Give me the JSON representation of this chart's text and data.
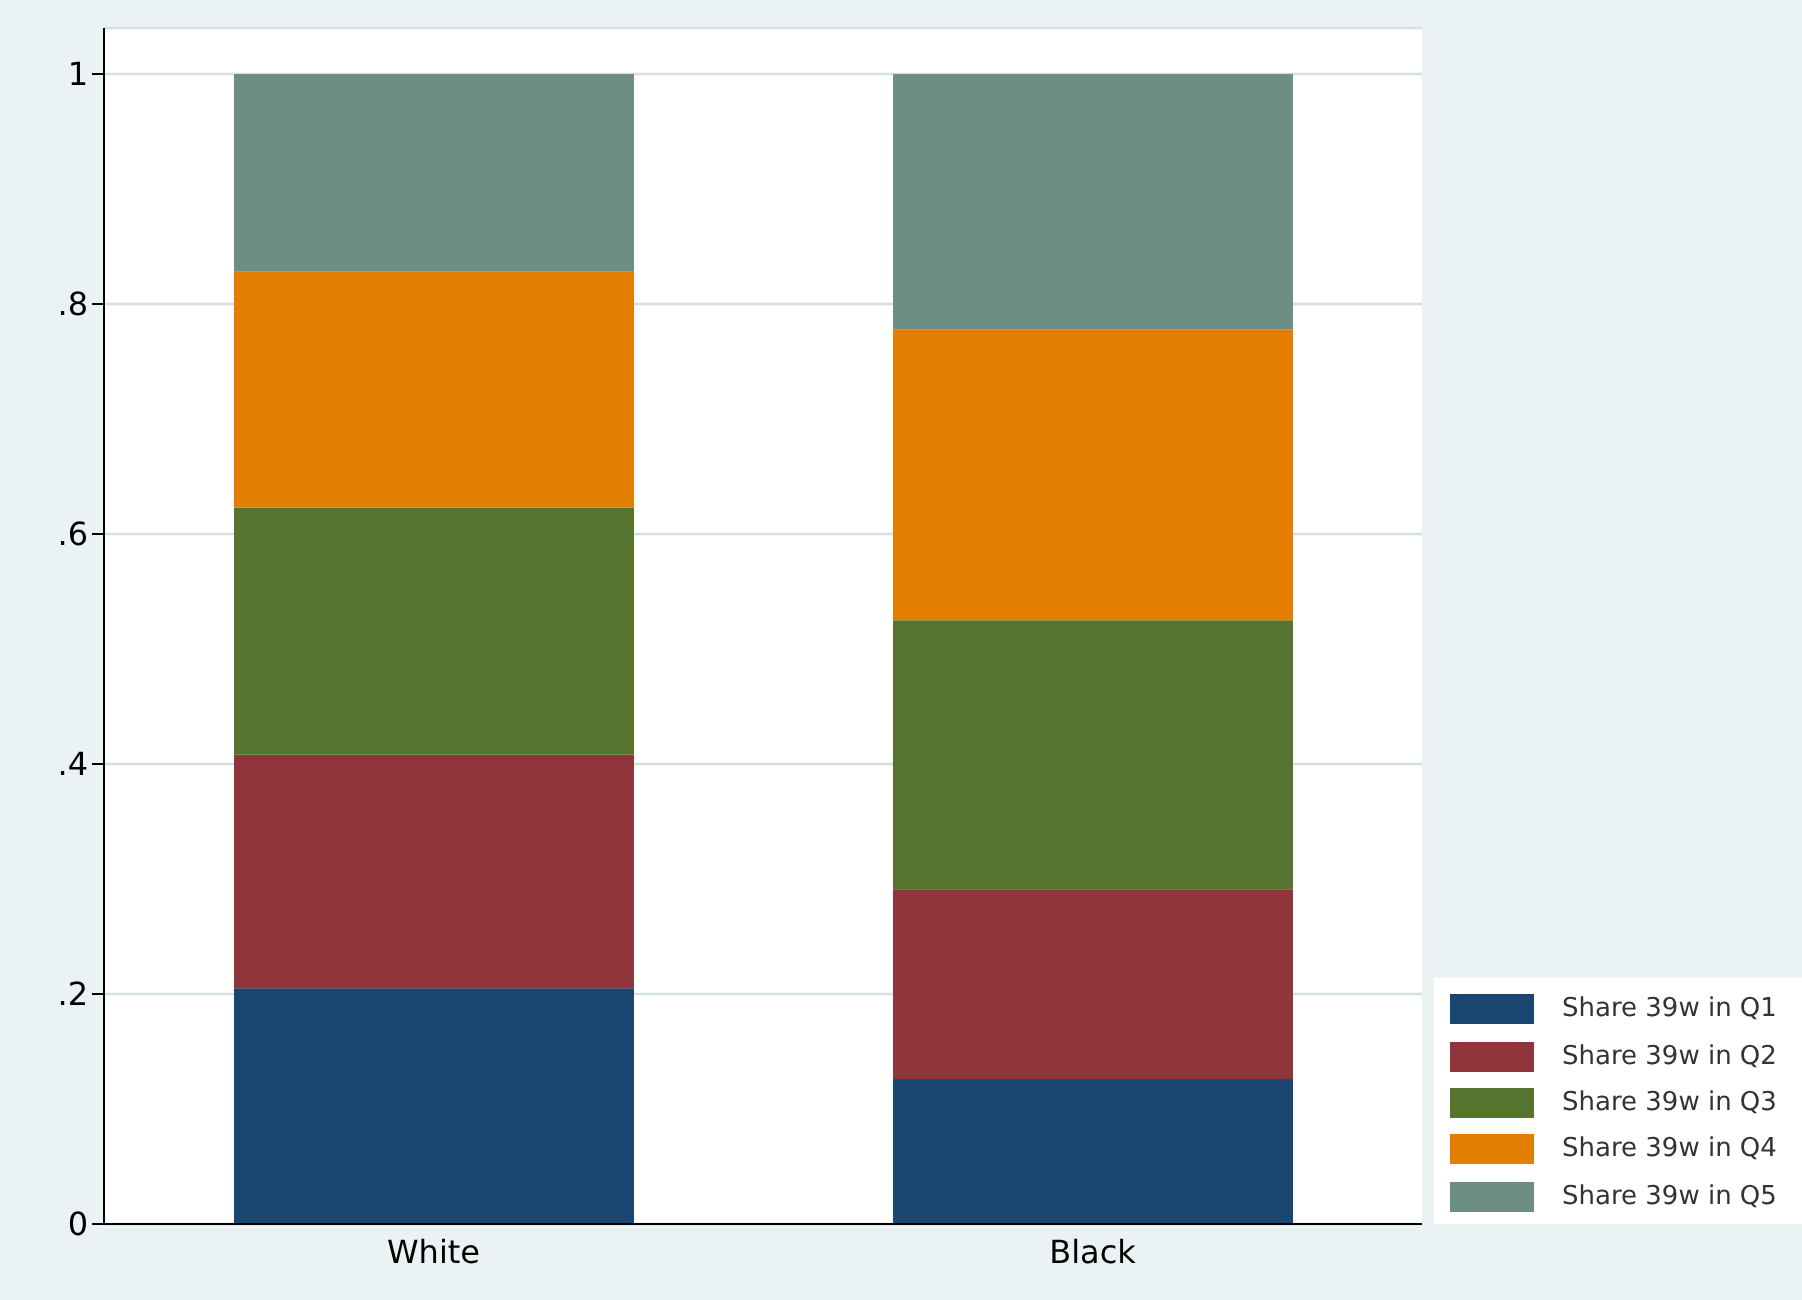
{
  "chart_data": {
    "type": "bar",
    "stacked": true,
    "categories": [
      "White",
      "Black"
    ],
    "series": [
      {
        "name": "Share 39w in Q1",
        "color": "#1a476f",
        "values": [
          0.205,
          0.126
        ]
      },
      {
        "name": "Share 39w in Q2",
        "color": "#90353b",
        "values": [
          0.203,
          0.165
        ]
      },
      {
        "name": "Share 39w in Q3",
        "color": "#55752f",
        "values": [
          0.215,
          0.234
        ]
      },
      {
        "name": "Share 39w in Q4",
        "color": "#e37e00",
        "values": [
          0.205,
          0.253
        ]
      },
      {
        "name": "Share 39w in Q5",
        "color": "#6e8e84",
        "values": [
          0.172,
          0.222
        ]
      }
    ],
    "ylim": [
      0,
      1.04
    ],
    "yticks": [
      0,
      {
        "value": 0.2,
        "label": ".2"
      },
      {
        "value": 0.4,
        "label": ".4"
      },
      {
        "value": 0.6,
        "label": ".6"
      },
      {
        "value": 0.8,
        "label": ".8"
      },
      1
    ],
    "grid": "y",
    "legend": "bottom right"
  }
}
